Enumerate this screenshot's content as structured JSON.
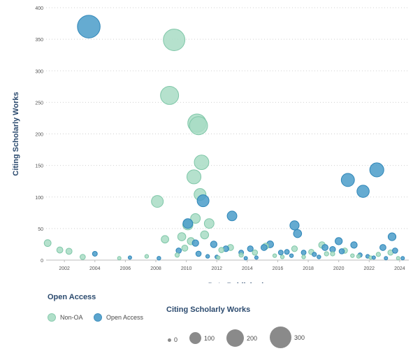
{
  "chart_data": {
    "type": "scatter",
    "title": "",
    "xlabel": "Date Published",
    "ylabel": "Citing Scholarly Works",
    "xlim": [
      2000.8,
      2024.6
    ],
    "ylim": [
      0,
      400
    ],
    "yticks": [
      0,
      50,
      100,
      150,
      200,
      250,
      300,
      350,
      400
    ],
    "xticks": [
      2002,
      2004,
      2006,
      2008,
      2010,
      2012,
      2014,
      2016,
      2018,
      2020,
      2022,
      2024
    ],
    "grid": "horizontal dotted",
    "color_legend": {
      "title": "Open Access",
      "items": [
        {
          "label": "Non-OA",
          "color": "#a8dcc4"
        },
        {
          "label": "Open Access",
          "color": "#4a9cc9"
        }
      ]
    },
    "size_legend": {
      "title": "Citing Scholarly Works",
      "items": [
        {
          "label": "0",
          "value": 0
        },
        {
          "label": "100",
          "value": 100
        },
        {
          "label": "200",
          "value": 200
        },
        {
          "label": "300",
          "value": 300
        }
      ]
    },
    "series": [
      {
        "name": "Non-OA",
        "color": "#a8dcc4",
        "x": [
          2000.9,
          2001.7,
          2002.3,
          2003.2,
          2008.1,
          2008.6,
          2008.9,
          2009.2,
          2009.7,
          2009.9,
          2010.1,
          2010.3,
          2010.5,
          2010.6,
          2010.7,
          2010.8,
          2010.9,
          2011.0,
          2011.2,
          2011.5,
          2012.3,
          2012.9,
          2013.6,
          2014.5,
          2015.2,
          2016.3,
          2017.1,
          2018.2,
          2018.9,
          2019.6,
          2020.4,
          2021.3,
          2022.6,
          2023.4,
          2005.6,
          2007.4,
          2009.4,
          2012.1,
          2015.8,
          2017.7,
          2019.2,
          2020.9,
          2022.1,
          2023.9
        ],
        "y": [
          27,
          16,
          14,
          5,
          93,
          33,
          261,
          349,
          37,
          19,
          56,
          30,
          132,
          66,
          217,
          213,
          104,
          155,
          40,
          58,
          16,
          20,
          8,
          12,
          22,
          5,
          18,
          13,
          24,
          10,
          15,
          6,
          9,
          12,
          3,
          6,
          8,
          4,
          7,
          5,
          10,
          7,
          4,
          3
        ],
        "sizes": [
          10,
          8,
          8,
          6,
          30,
          12,
          70,
          99,
          14,
          8,
          22,
          11,
          42,
          20,
          72,
          70,
          30,
          45,
          14,
          20,
          6,
          8,
          4,
          6,
          8,
          3,
          7,
          6,
          9,
          4,
          6,
          3,
          4,
          6,
          2,
          3,
          4,
          2,
          3,
          3,
          4,
          3,
          2,
          2
        ]
      },
      {
        "name": "Open Access",
        "color": "#4a9cc9",
        "x": [
          2003.6,
          2004.0,
          2008.2,
          2009.5,
          2010.1,
          2010.6,
          2010.8,
          2011.1,
          2011.8,
          2012.6,
          2013.0,
          2013.6,
          2014.2,
          2015.1,
          2015.5,
          2016.2,
          2016.6,
          2017.1,
          2017.3,
          2018.4,
          2019.1,
          2019.6,
          2020.0,
          2020.6,
          2021.0,
          2021.4,
          2021.6,
          2022.5,
          2022.9,
          2023.5,
          2023.7,
          2006.3,
          2011.4,
          2012.0,
          2013.9,
          2014.6,
          2016.9,
          2017.7,
          2018.7,
          2020.2,
          2021.9,
          2022.3,
          2023.1,
          2024.2
        ],
        "y": [
          370,
          10,
          3,
          15,
          58,
          27,
          10,
          94,
          25,
          18,
          70,
          12,
          18,
          20,
          25,
          12,
          13,
          55,
          42,
          9,
          20,
          17,
          30,
          127,
          24,
          8,
          109,
          143,
          20,
          37,
          15,
          4,
          6,
          5,
          3,
          4,
          7,
          12,
          5,
          14,
          6,
          4,
          3,
          3
        ],
        "sizes": [
          110,
          5,
          3,
          6,
          20,
          9,
          6,
          30,
          9,
          7,
          20,
          5,
          7,
          8,
          10,
          5,
          5,
          18,
          14,
          4,
          8,
          7,
          11,
          37,
          9,
          4,
          32,
          42,
          8,
          13,
          6,
          2,
          3,
          3,
          2,
          2,
          3,
          5,
          3,
          6,
          3,
          2,
          2,
          2
        ]
      }
    ]
  }
}
